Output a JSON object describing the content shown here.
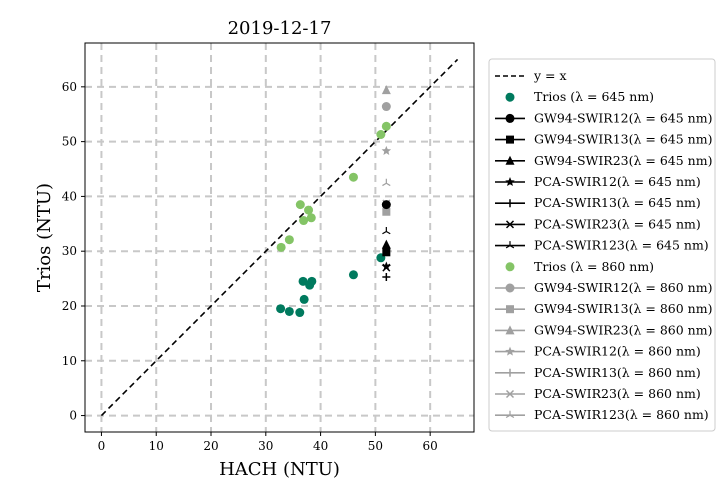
{
  "chart_data": {
    "type": "scatter",
    "title": "2019-12-17",
    "xlabel": "HACH (NTU)",
    "ylabel": "Trios (NTU)",
    "xlim": [
      -3,
      68
    ],
    "ylim": [
      -3,
      68
    ],
    "xticks": [
      0,
      10,
      20,
      30,
      40,
      50,
      60
    ],
    "yticks": [
      0,
      10,
      20,
      30,
      40,
      50,
      60
    ],
    "grid": true,
    "legend_position": "outside-right",
    "colors": {
      "trios645": "#007a5e",
      "trios860": "#84c466",
      "black": "#000000",
      "gray": "#a0a0a0",
      "grid": "#c8c8c8"
    },
    "series": [
      {
        "name": "$y = x$",
        "label_text": "y = x",
        "kind": "line",
        "marker": "dashed-line",
        "color": "#000000",
        "x": [
          0,
          65
        ],
        "y": [
          0,
          65
        ]
      },
      {
        "name": "Trios ($\\lambda = 645$ nm)",
        "label_text": "Trios (λ = 645 nm)",
        "kind": "scatter",
        "marker": "circle",
        "color": "#007a5e",
        "x": [
          32.7,
          34.3,
          36.2,
          36.8,
          37.0,
          38.0,
          38.4,
          46.0,
          51.0
        ],
        "y": [
          19.5,
          19.0,
          18.8,
          24.5,
          21.2,
          23.8,
          24.5,
          25.7,
          28.8
        ]
      },
      {
        "name": "GW94-SWIR12($\\lambda = 645$ nm)",
        "label_text": "GW94-SWIR12(λ = 645 nm)",
        "kind": "scatter",
        "marker": "circle",
        "color": "#000000",
        "x": [
          52
        ],
        "y": [
          38.5
        ]
      },
      {
        "name": "GW94-SWIR13($\\lambda = 645$ nm)",
        "label_text": "GW94-SWIR13(λ = 645 nm)",
        "kind": "scatter",
        "marker": "square",
        "color": "#000000",
        "x": [
          52
        ],
        "y": [
          29.8
        ]
      },
      {
        "name": "GW94-SWIR23($\\lambda = 645$ nm)",
        "label_text": "GW94-SWIR23(λ = 645 nm)",
        "kind": "scatter",
        "marker": "triangle",
        "color": "#000000",
        "x": [
          52
        ],
        "y": [
          31.2
        ]
      },
      {
        "name": "PCA-SWIR12($\\lambda = 645$ nm)",
        "label_text": "PCA-SWIR12(λ = 645 nm)",
        "kind": "scatter",
        "marker": "star",
        "color": "#000000",
        "x": [
          52
        ],
        "y": [
          27.2
        ]
      },
      {
        "name": "PCA-SWIR13($\\lambda = 645$ nm)",
        "label_text": "PCA-SWIR13(λ = 645 nm)",
        "kind": "scatter",
        "marker": "plus",
        "color": "#000000",
        "x": [
          52
        ],
        "y": [
          25.3
        ]
      },
      {
        "name": "PCA-SWIR23($\\lambda = 645$ nm)",
        "label_text": "PCA-SWIR23(λ = 645 nm)",
        "kind": "scatter",
        "marker": "x",
        "color": "#000000",
        "x": [
          52
        ],
        "y": [
          27.0
        ]
      },
      {
        "name": "PCA-SWIR123($\\lambda = 645$ nm)",
        "label_text": "PCA-SWIR123(λ = 645 nm)",
        "kind": "scatter",
        "marker": "tri",
        "color": "#000000",
        "x": [
          52
        ],
        "y": [
          33.6
        ]
      },
      {
        "name": "Trios ($\\lambda = 860$ nm)",
        "label_text": "Trios (λ = 860 nm)",
        "kind": "scatter",
        "marker": "circle",
        "color": "#84c466",
        "x": [
          32.8,
          34.3,
          36.3,
          36.9,
          37.8,
          38.3,
          46.0,
          51.0,
          52.0
        ],
        "y": [
          30.7,
          32.1,
          38.5,
          35.6,
          37.5,
          36.1,
          43.5,
          51.3,
          52.8
        ]
      },
      {
        "name": "GW94-SWIR12($\\lambda = 860$ nm)",
        "label_text": "GW94-SWIR12(λ = 860 nm)",
        "kind": "scatter",
        "marker": "circle",
        "color": "#a0a0a0",
        "x": [
          52
        ],
        "y": [
          56.4
        ]
      },
      {
        "name": "GW94-SWIR13($\\lambda = 860$ nm)",
        "label_text": "GW94-SWIR13(λ = 860 nm)",
        "kind": "scatter",
        "marker": "square",
        "color": "#a0a0a0",
        "x": [
          52
        ],
        "y": [
          37.2
        ]
      },
      {
        "name": "GW94-SWIR23($\\lambda = 860$ nm)",
        "label_text": "GW94-SWIR23(λ = 860 nm)",
        "kind": "scatter",
        "marker": "triangle",
        "color": "#a0a0a0",
        "x": [
          52
        ],
        "y": [
          59.4
        ]
      },
      {
        "name": "PCA-SWIR12($\\lambda = 860$ nm)",
        "label_text": "PCA-SWIR12(λ = 860 nm)",
        "kind": "scatter",
        "marker": "star",
        "color": "#a0a0a0",
        "x": [
          52
        ],
        "y": [
          48.3
        ]
      },
      {
        "name": "PCA-SWIR13($\\lambda = 860$ nm)",
        "label_text": "PCA-SWIR13(λ = 860 nm)",
        "kind": "scatter",
        "marker": "plus",
        "color": "#a0a0a0",
        "x": [
          52
        ],
        "y": [
          38.4
        ]
      },
      {
        "name": "PCA-SWIR23($\\lambda = 860$ nm)",
        "label_text": "PCA-SWIR23(λ = 860 nm)",
        "kind": "scatter",
        "marker": "x",
        "color": "#a0a0a0",
        "x": [
          52
        ],
        "y": [
          38.7
        ]
      },
      {
        "name": "PCA-SWIR123($\\lambda = 860$ nm)",
        "label_text": "PCA-SWIR123(λ = 860 nm)",
        "kind": "scatter",
        "marker": "tri",
        "color": "#a0a0a0",
        "x": [
          52
        ],
        "y": [
          42.4
        ]
      }
    ]
  }
}
